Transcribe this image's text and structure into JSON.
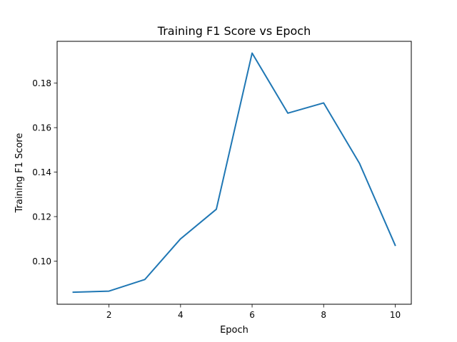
{
  "chart_data": {
    "type": "line",
    "title": "Training F1 Score vs Epoch",
    "xlabel": "Epoch",
    "ylabel": "Training F1 Score",
    "xlim": [
      0.55,
      10.45
    ],
    "ylim": [
      0.0806,
      0.1988
    ],
    "xticks": [
      2,
      4,
      6,
      8,
      10
    ],
    "yticks": [
      0.1,
      0.12,
      0.14,
      0.16,
      0.18
    ],
    "ytick_labels": [
      "0.10",
      "0.12",
      "0.14",
      "0.16",
      "0.18"
    ],
    "grid": false,
    "color": "#1f77b4",
    "series": [
      {
        "x": [
          1,
          2,
          3,
          4,
          5,
          6,
          7,
          8,
          9,
          10
        ],
        "values": [
          0.086,
          0.0865,
          0.0917,
          0.11,
          0.1233,
          0.1935,
          0.1665,
          0.1711,
          0.144,
          0.1071
        ]
      }
    ]
  }
}
